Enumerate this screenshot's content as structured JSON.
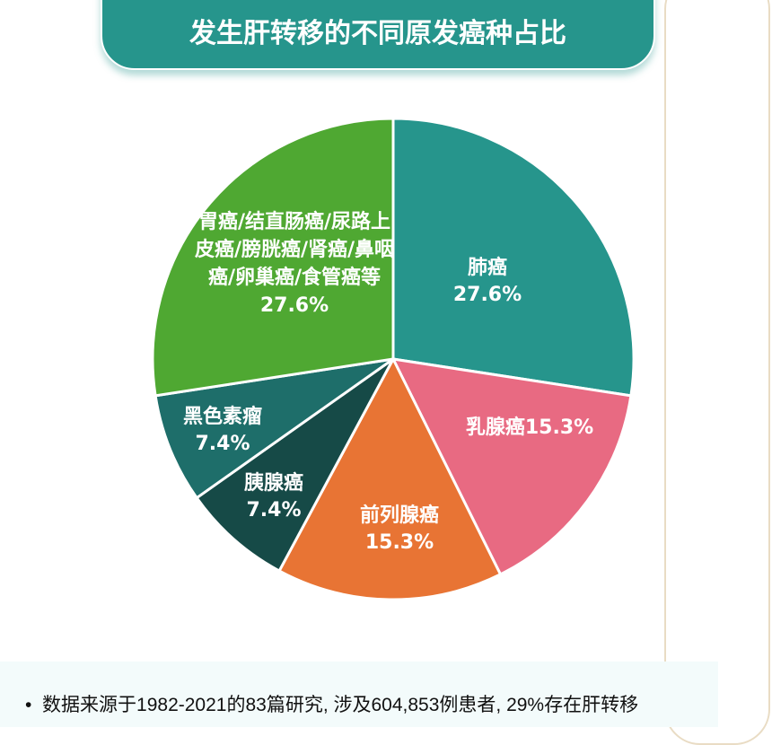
{
  "chart_data": {
    "type": "pie",
    "title": "发生肝转移的不同原发癌种占比",
    "start": "top",
    "direction": "clockwise",
    "slices": [
      {
        "label": "肺癌",
        "value": 27.6,
        "value_label": "27.6%",
        "color": "#26958c"
      },
      {
        "label": "乳腺癌",
        "value": 15.3,
        "value_label": "15.3%",
        "color": "#e86a82"
      },
      {
        "label": "前列腺癌",
        "value": 15.3,
        "value_label": "15.3%",
        "color": "#e87434"
      },
      {
        "label": "胰腺癌",
        "value": 7.4,
        "value_label": "7.4%",
        "color": "#164a47"
      },
      {
        "label": "黑色素瘤",
        "value": 7.4,
        "value_label": "7.4%",
        "color": "#1e6e6a"
      },
      {
        "label": "胃癌/结直肠癌/尿路上皮癌/膀胱癌/肾癌/鼻咽癌/卵巢癌/食管癌等",
        "value": 27.6,
        "value_label": "27.6%",
        "color": "#4fa832"
      }
    ]
  },
  "footer": {
    "bullet": "•",
    "text": "数据来源于1982-2021的83篇研究, 涉及604,853例患者, 29%存在肝转移"
  }
}
